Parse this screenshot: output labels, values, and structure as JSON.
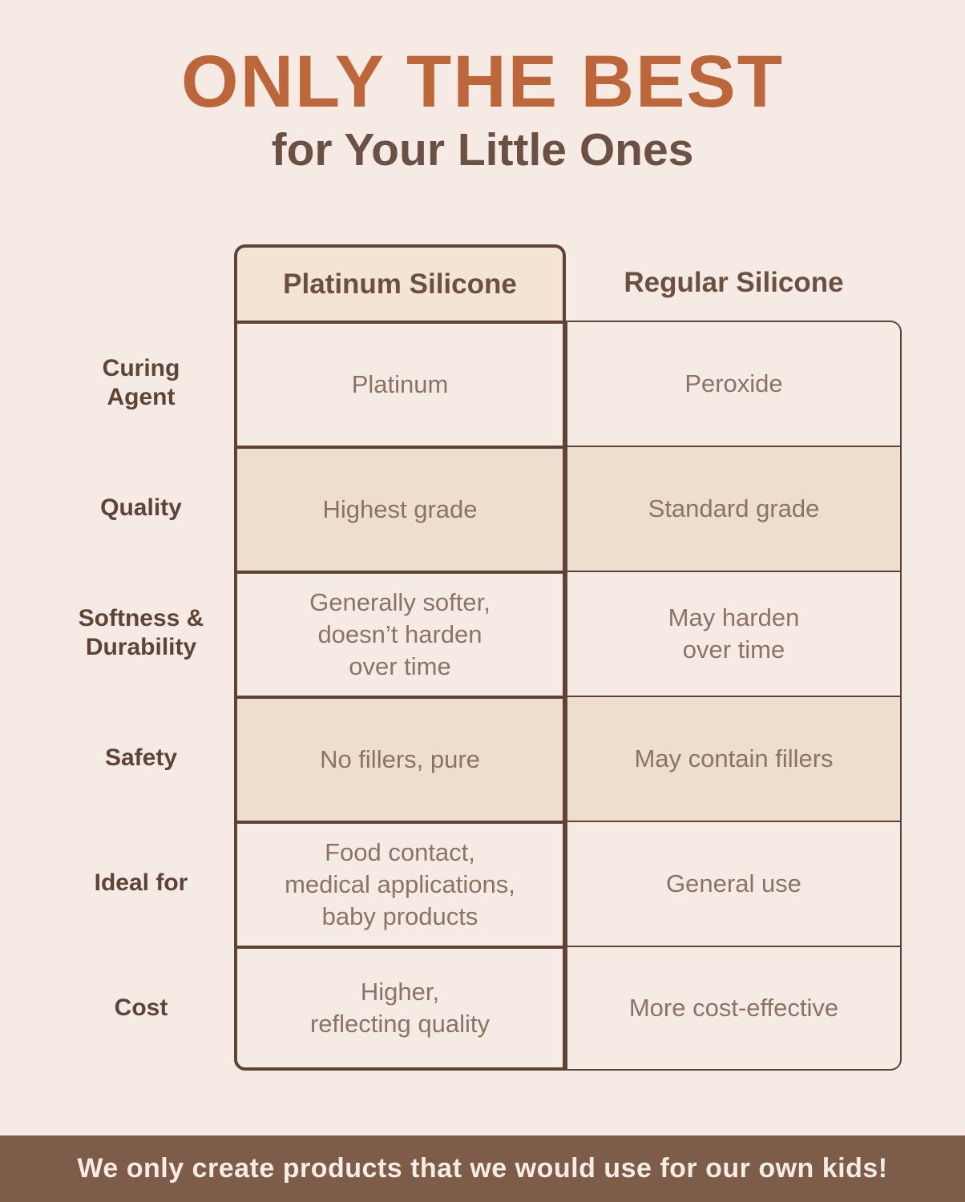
{
  "title": {
    "main": "ONLY THE BEST",
    "subtitle": "for Your Little Ones"
  },
  "table": {
    "columns": [
      "Platinum Silicone",
      "Regular Silicone"
    ],
    "rows": [
      {
        "label": "Curing\nAgent",
        "platinum": "Platinum",
        "regular": "Peroxide"
      },
      {
        "label": "Quality",
        "platinum": "Highest grade",
        "regular": "Standard grade"
      },
      {
        "label": "Softness &\nDurability",
        "platinum": "Generally softer,\ndoesn’t harden\nover time",
        "regular": "May harden\nover time"
      },
      {
        "label": "Safety",
        "platinum": "No fillers, pure",
        "regular": "May contain fillers"
      },
      {
        "label": "Ideal for",
        "platinum": "Food contact,\nmedical applications,\nbaby products",
        "regular": "General use"
      },
      {
        "label": "Cost",
        "platinum": "Higher,\nreflecting quality",
        "regular": "More cost-effective"
      }
    ]
  },
  "footer": {
    "text": "We only create products that we would use for our own kids!"
  },
  "colors": {
    "page_background": "#f6ebe4",
    "title_orange": "#bd6639",
    "heading_brown": "#6b5143",
    "border_brown": "#5d4437",
    "cell_text": "#8b7365",
    "shaded_row": "#eedecd",
    "tab_fill": "#f3e4d4",
    "footer_background": "#7d5c4a",
    "footer_text": "#f6ece2"
  }
}
